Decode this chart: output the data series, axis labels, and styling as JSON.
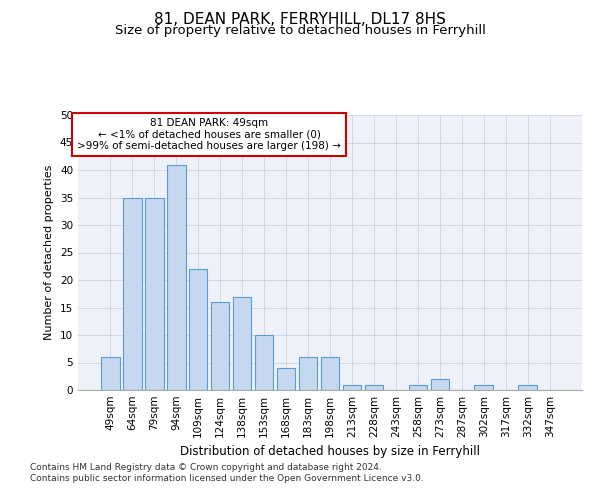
{
  "title": "81, DEAN PARK, FERRYHILL, DL17 8HS",
  "subtitle": "Size of property relative to detached houses in Ferryhill",
  "xlabel": "Distribution of detached houses by size in Ferryhill",
  "ylabel": "Number of detached properties",
  "categories": [
    "49sqm",
    "64sqm",
    "79sqm",
    "94sqm",
    "109sqm",
    "124sqm",
    "138sqm",
    "153sqm",
    "168sqm",
    "183sqm",
    "198sqm",
    "213sqm",
    "228sqm",
    "243sqm",
    "258sqm",
    "273sqm",
    "287sqm",
    "302sqm",
    "317sqm",
    "332sqm",
    "347sqm"
  ],
  "values": [
    6,
    35,
    35,
    41,
    22,
    16,
    17,
    10,
    4,
    6,
    6,
    1,
    1,
    0,
    1,
    2,
    0,
    1,
    0,
    1,
    0
  ],
  "bar_color": "#c5d8f0",
  "bar_edge_color": "#5b9bd5",
  "annotation_box_text": "81 DEAN PARK: 49sqm\n← <1% of detached houses are smaller (0)\n>99% of semi-detached houses are larger (198) →",
  "annotation_box_color": "#ffffff",
  "annotation_box_edge_color": "#cc0000",
  "ylim": [
    0,
    50
  ],
  "yticks": [
    0,
    5,
    10,
    15,
    20,
    25,
    30,
    35,
    40,
    45,
    50
  ],
  "grid_color": "#d0d8e8",
  "background_color": "#eef2f8",
  "footer_line1": "Contains HM Land Registry data © Crown copyright and database right 2024.",
  "footer_line2": "Contains public sector information licensed under the Open Government Licence v3.0.",
  "title_fontsize": 11,
  "subtitle_fontsize": 9.5,
  "xlabel_fontsize": 8.5,
  "ylabel_fontsize": 8,
  "tick_fontsize": 7.5,
  "footer_fontsize": 6.5
}
